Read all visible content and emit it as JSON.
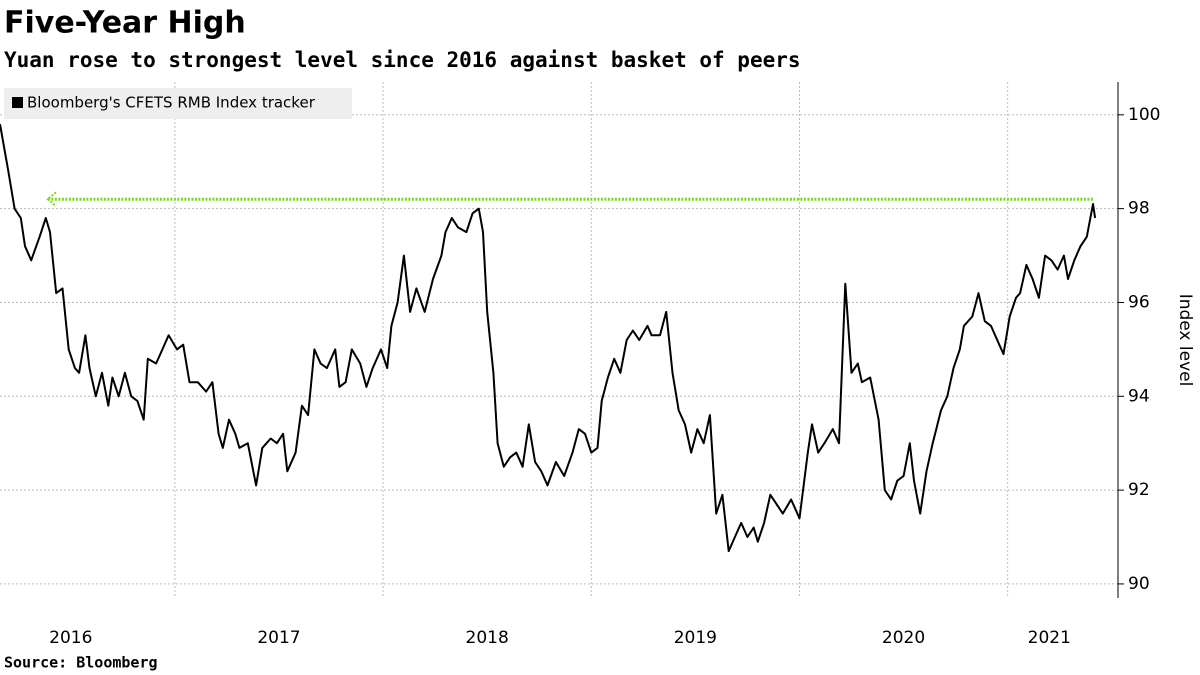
{
  "chart_data": {
    "type": "line",
    "title": "Five-Year High",
    "subtitle": "Yuan rose to strongest level since 2016 against basket of peers",
    "y_axis_label": "Index level",
    "source": "Source: Bloomberg",
    "xlim": [
      2016.16,
      2021.53
    ],
    "ylim": [
      89.7,
      100.7
    ],
    "yticks": [
      90,
      92,
      94,
      96,
      98,
      100
    ],
    "xticks": [
      {
        "value": 2016.5,
        "label": "2016"
      },
      {
        "value": 2017.5,
        "label": "2017"
      },
      {
        "value": 2018.5,
        "label": "2018"
      },
      {
        "value": 2019.5,
        "label": "2019"
      },
      {
        "value": 2020.5,
        "label": "2020"
      },
      {
        "value": 2021.2,
        "label": "2021"
      }
    ],
    "xgrid": [
      2017,
      2018,
      2019,
      2020,
      2021
    ],
    "grid": true,
    "legend_position": "top-left",
    "reference": {
      "value": 98.2,
      "x": [
        2016.39,
        2021.41
      ],
      "color": "#7ed321"
    },
    "series": [
      {
        "name": "Bloomberg's CFETS RMB Index tracker",
        "color": "#000000",
        "x": [
          2016.16,
          2016.2,
          2016.23,
          2016.26,
          2016.28,
          2016.31,
          2016.35,
          2016.38,
          2016.4,
          2016.43,
          2016.46,
          2016.49,
          2016.52,
          2016.54,
          2016.57,
          2016.59,
          2016.62,
          2016.65,
          2016.68,
          2016.7,
          2016.73,
          2016.76,
          2016.79,
          2016.82,
          2016.85,
          2016.87,
          2016.91,
          2016.94,
          2016.97,
          2017.01,
          2017.04,
          2017.07,
          2017.11,
          2017.15,
          2017.18,
          2017.21,
          2017.23,
          2017.26,
          2017.29,
          2017.31,
          2017.35,
          2017.39,
          2017.42,
          2017.46,
          2017.49,
          2017.52,
          2017.54,
          2017.58,
          2017.61,
          2017.64,
          2017.67,
          2017.7,
          2017.73,
          2017.77,
          2017.79,
          2017.82,
          2017.85,
          2017.89,
          2017.92,
          2017.95,
          2017.99,
          2018.02,
          2018.04,
          2018.07,
          2018.1,
          2018.13,
          2018.16,
          2018.2,
          2018.24,
          2018.28,
          2018.3,
          2018.33,
          2018.36,
          2018.4,
          2018.43,
          2018.46,
          2018.48,
          2018.5,
          2018.53,
          2018.55,
          2018.58,
          2018.61,
          2018.64,
          2018.67,
          2018.7,
          2018.73,
          2018.76,
          2018.79,
          2018.83,
          2018.87,
          2018.91,
          2018.94,
          2018.97,
          2019.0,
          2019.03,
          2019.05,
          2019.08,
          2019.11,
          2019.14,
          2019.17,
          2019.2,
          2019.23,
          2019.27,
          2019.29,
          2019.33,
          2019.36,
          2019.39,
          2019.42,
          2019.45,
          2019.48,
          2019.51,
          2019.54,
          2019.57,
          2019.6,
          2019.63,
          2019.66,
          2019.69,
          2019.72,
          2019.75,
          2019.78,
          2019.8,
          2019.83,
          2019.86,
          2019.89,
          2019.92,
          2019.96,
          2020.0,
          2020.04,
          2020.06,
          2020.09,
          2020.12,
          2020.16,
          2020.19,
          2020.22,
          2020.25,
          2020.28,
          2020.3,
          2020.34,
          2020.38,
          2020.41,
          2020.44,
          2020.47,
          2020.5,
          2020.53,
          2020.55,
          2020.58,
          2020.61,
          2020.64,
          2020.68,
          2020.71,
          2020.74,
          2020.77,
          2020.79,
          2020.83,
          2020.86,
          2020.89,
          2020.92,
          2020.95,
          2020.98,
          2021.01,
          2021.04,
          2021.06,
          2021.09,
          2021.12,
          2021.15,
          2021.18,
          2021.21,
          2021.24,
          2021.27,
          2021.29,
          2021.32,
          2021.35,
          2021.38,
          2021.41,
          2021.42
        ],
        "values": [
          99.8,
          98.8,
          98.0,
          97.8,
          97.2,
          96.9,
          97.4,
          97.8,
          97.5,
          96.2,
          96.3,
          95.0,
          94.6,
          94.5,
          95.3,
          94.6,
          94.0,
          94.5,
          93.8,
          94.4,
          94.0,
          94.5,
          94.0,
          93.9,
          93.5,
          94.8,
          94.7,
          95.0,
          95.3,
          95.0,
          95.1,
          94.3,
          94.3,
          94.1,
          94.3,
          93.2,
          92.9,
          93.5,
          93.2,
          92.9,
          93.0,
          92.1,
          92.9,
          93.1,
          93.0,
          93.2,
          92.4,
          92.8,
          93.8,
          93.6,
          95.0,
          94.7,
          94.6,
          95.0,
          94.2,
          94.3,
          95.0,
          94.7,
          94.2,
          94.6,
          95.0,
          94.6,
          95.5,
          96.0,
          97.0,
          95.8,
          96.3,
          95.8,
          96.5,
          97.0,
          97.5,
          97.8,
          97.6,
          97.5,
          97.9,
          98.0,
          97.5,
          95.8,
          94.5,
          93.0,
          92.5,
          92.7,
          92.8,
          92.5,
          93.4,
          92.6,
          92.4,
          92.1,
          92.6,
          92.3,
          92.8,
          93.3,
          93.2,
          92.8,
          92.9,
          93.9,
          94.4,
          94.8,
          94.5,
          95.2,
          95.4,
          95.2,
          95.5,
          95.3,
          95.3,
          95.8,
          94.5,
          93.7,
          93.4,
          92.8,
          93.3,
          93.0,
          93.6,
          91.5,
          91.9,
          90.7,
          91.0,
          91.3,
          91.0,
          91.2,
          90.9,
          91.3,
          91.9,
          91.7,
          91.5,
          91.8,
          91.4,
          92.8,
          93.4,
          92.8,
          93.0,
          93.3,
          93.0,
          96.4,
          94.5,
          94.7,
          94.3,
          94.4,
          93.5,
          92.0,
          91.8,
          92.2,
          92.3,
          93.0,
          92.2,
          91.5,
          92.4,
          93.0,
          93.7,
          94.0,
          94.6,
          95.0,
          95.5,
          95.7,
          96.2,
          95.6,
          95.5,
          95.2,
          94.9,
          95.7,
          96.1,
          96.2,
          96.8,
          96.5,
          96.1,
          97.0,
          96.9,
          96.7,
          97.0,
          96.5,
          96.9,
          97.2,
          97.4,
          98.1,
          97.8
        ]
      }
    ]
  }
}
